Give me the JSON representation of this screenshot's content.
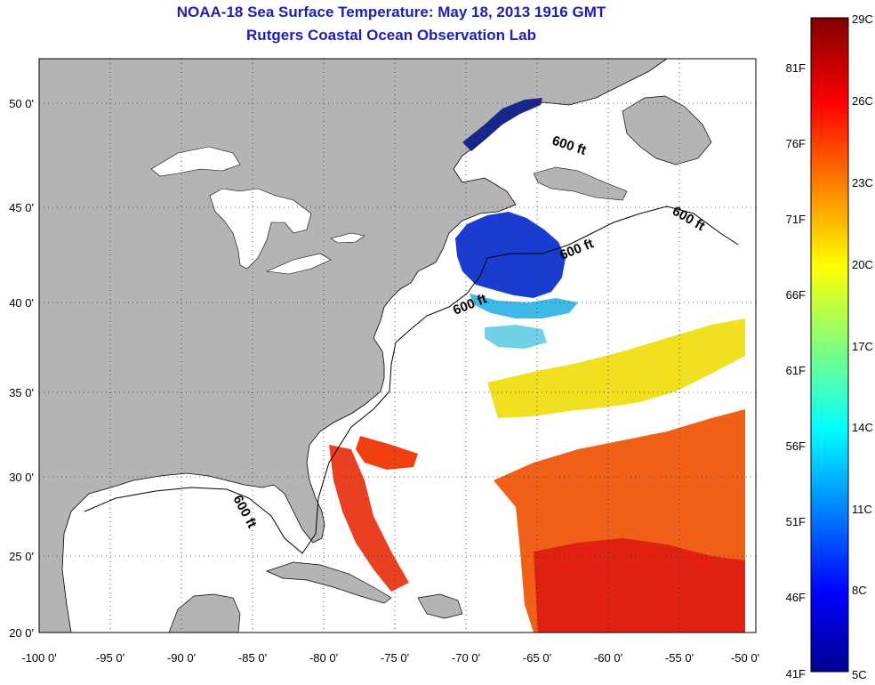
{
  "title": "NOAA-18 Sea Surface Temperature:  May 18, 2013 1916 GMT",
  "subtitle": "Rutgers Coastal Ocean Observation Lab",
  "map": {
    "lon_ticks": [
      "-100 0'",
      "-95 0'",
      "-90 0'",
      "-85 0'",
      "-80 0'",
      "-75 0'",
      "-70 0'",
      "-65 0'",
      "-60 0'",
      "-55 0'",
      "-50 0'"
    ],
    "lat_ticks": [
      "50 0'",
      "45 0'",
      "40 0'",
      "35 0'",
      "30 0'",
      "25 0'",
      "20 0'"
    ],
    "contour_labels": [
      "600 ft",
      "600 ft",
      "600 ft",
      "600 ft",
      "600 ft"
    ],
    "land_color": "#b4b4b4",
    "ocean_color": "#ffffff"
  },
  "colorbar": {
    "celsius_labels": [
      "29C",
      "26C",
      "23C",
      "20C",
      "17C",
      "14C",
      "11C",
      "8C",
      "5C"
    ],
    "fahrenheit_labels": [
      "81F",
      "76F",
      "71F",
      "66F",
      "61F",
      "56F",
      "51F",
      "46F",
      "41F"
    ],
    "colors": [
      "#800000",
      "#ff0000",
      "#ff8000",
      "#ffff00",
      "#80ff80",
      "#00ffff",
      "#0080ff",
      "#0000ff",
      "#00008f"
    ]
  }
}
